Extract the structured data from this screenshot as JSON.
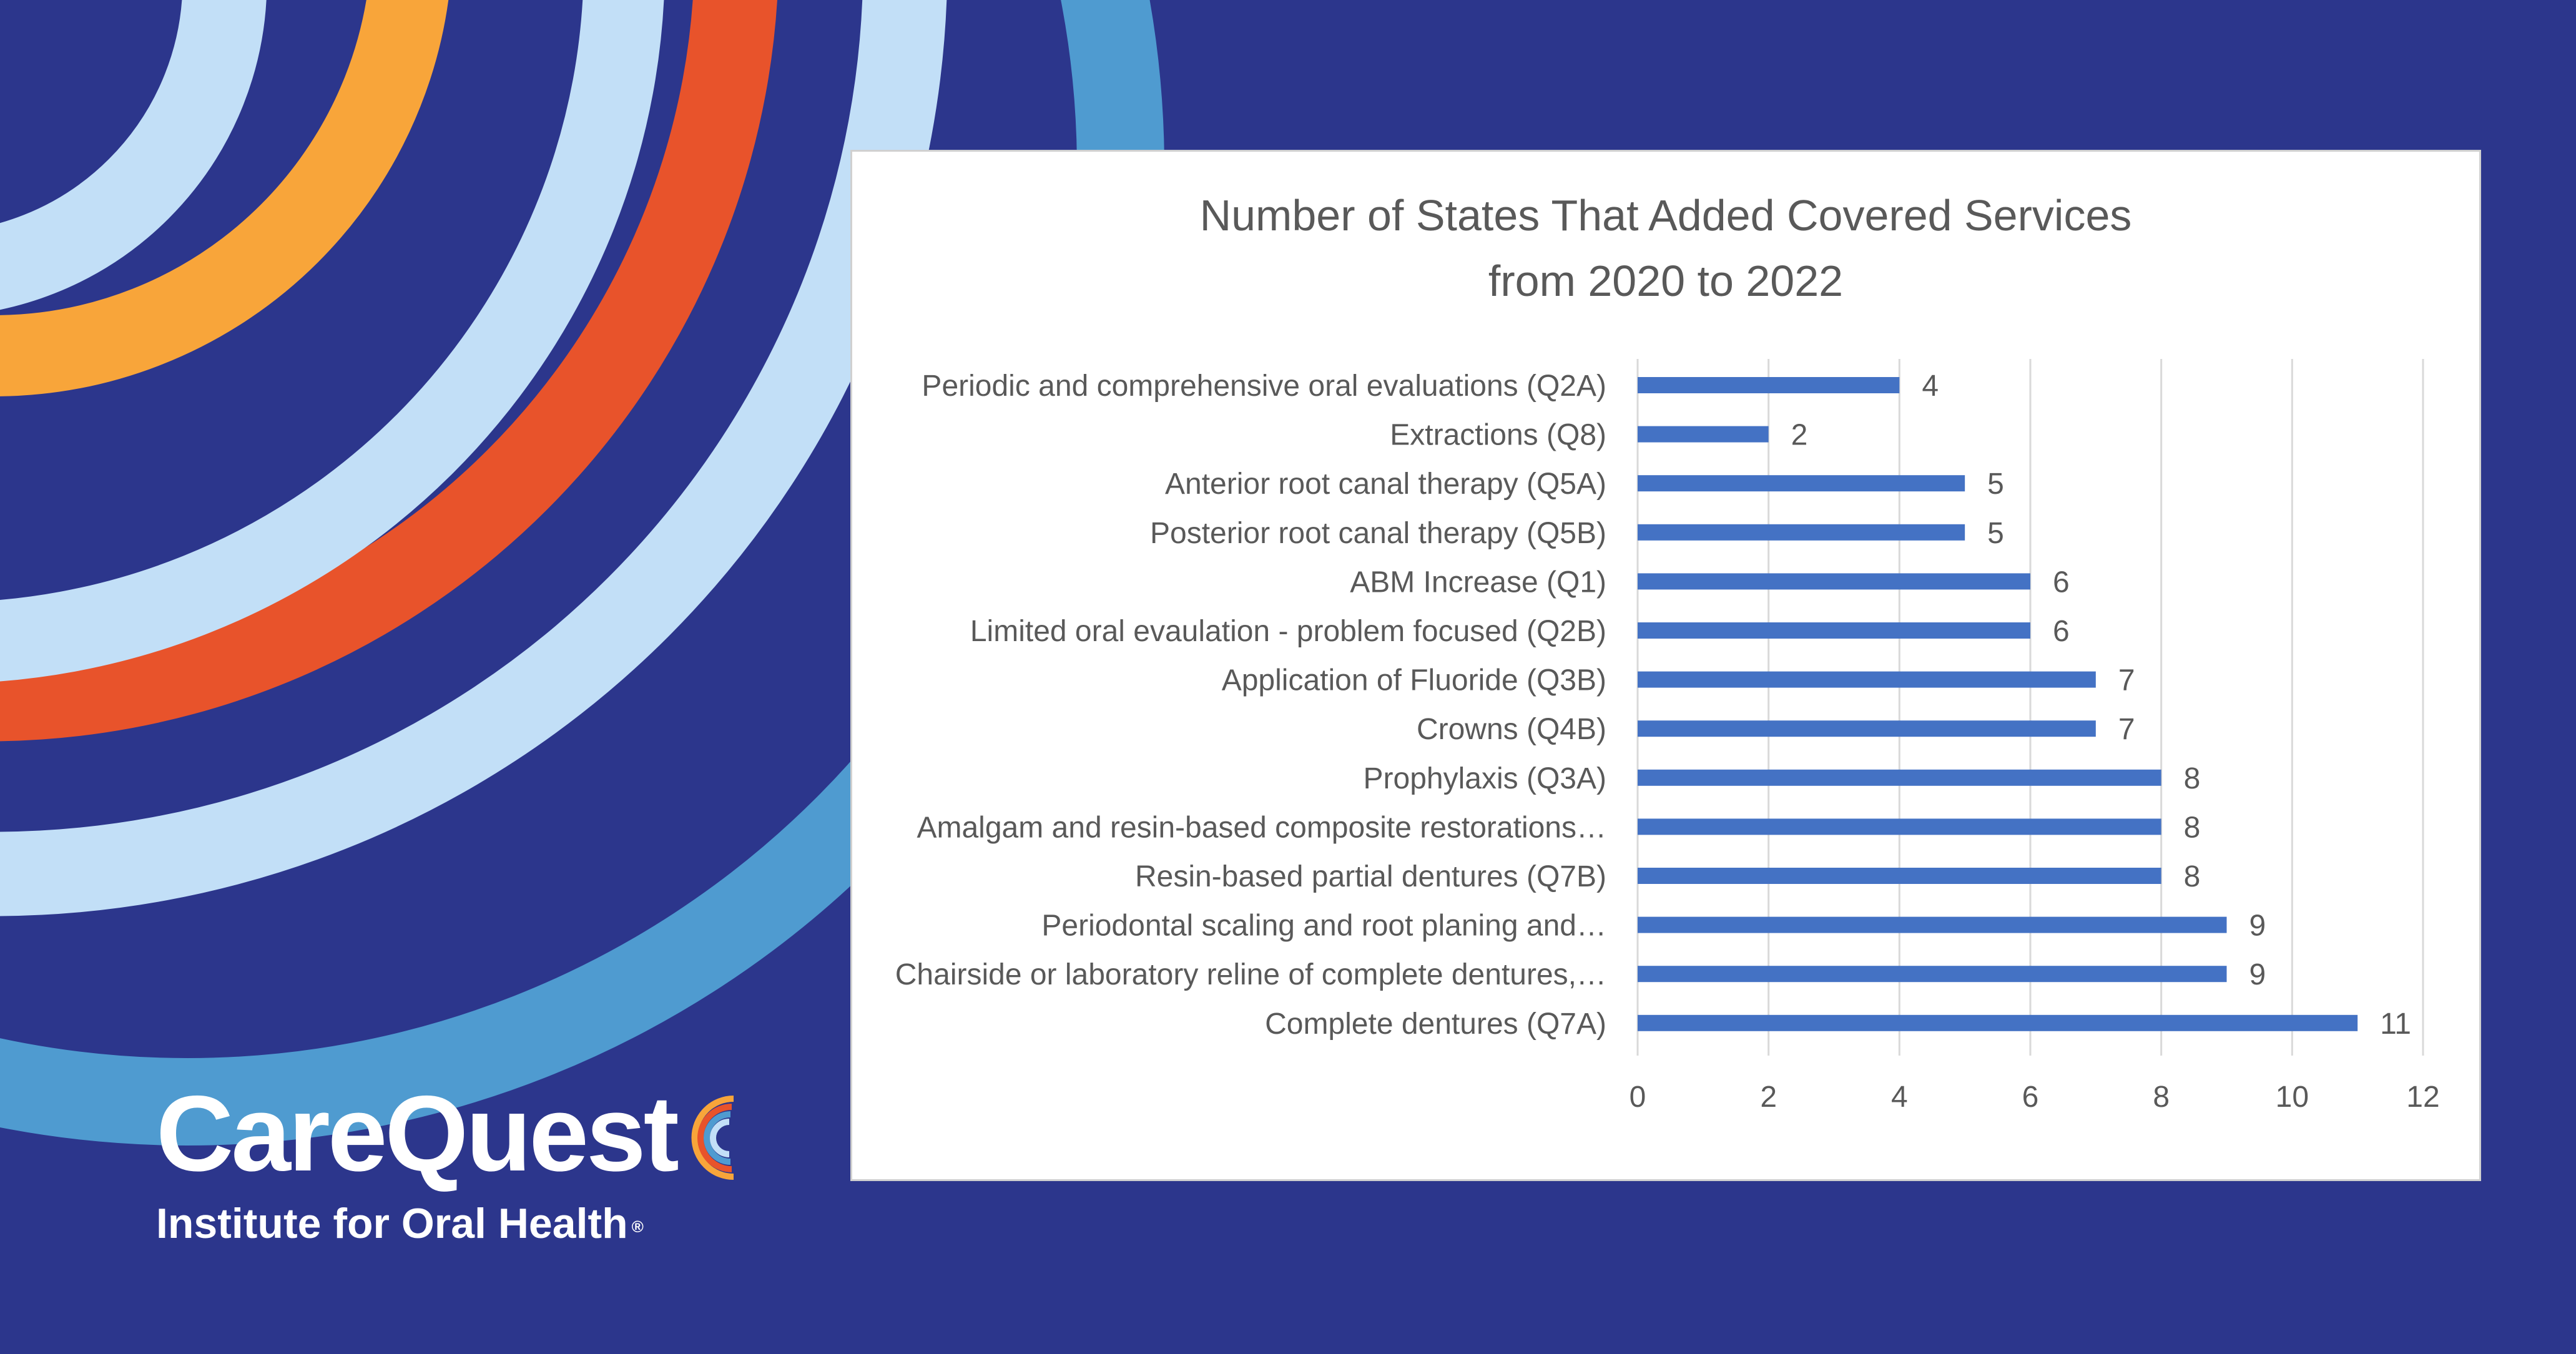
{
  "brand": {
    "name": "CareQuest",
    "tagline": "Institute for Oral Health",
    "registered_mark": "®",
    "colors": {
      "background": "#2c368c",
      "light_blue": "#c2dff7",
      "mid_blue": "#4f9bd0",
      "orange": "#f8a53a",
      "red_orange": "#e8532b"
    }
  },
  "chart_data": {
    "type": "bar",
    "orientation": "horizontal",
    "title": "Number of States That Added Covered Services from 2020 to 2022",
    "title_lines": [
      "Number of States That Added Covered Services",
      "from 2020 to 2022"
    ],
    "categories": [
      "Periodic and comprehensive oral evaluations (Q2A)",
      "Extractions (Q8)",
      "Anterior root canal therapy (Q5A)",
      "Posterior root canal therapy (Q5B)",
      "ABM Increase (Q1)",
      "Limited oral evaulation - problem focused (Q2B)",
      "Application of Fluoride (Q3B)",
      "Crowns (Q4B)",
      "Prophylaxis (Q3A)",
      "Amalgam and resin-based composite restorations…",
      "Resin-based partial dentures (Q7B)",
      "Periodontal scaling and root planing and…",
      "Chairside or laboratory reline of complete dentures,…",
      "Complete dentures (Q7A)"
    ],
    "values": [
      4,
      2,
      5,
      5,
      6,
      6,
      7,
      7,
      8,
      8,
      8,
      9,
      9,
      11
    ],
    "xlim": [
      0,
      12
    ],
    "x_ticks": [
      0,
      2,
      4,
      6,
      8,
      10,
      12
    ],
    "xlabel": "",
    "ylabel": "",
    "grid": "vertical",
    "data_labels": true,
    "legend": "none",
    "bar_color": "#4472c4"
  }
}
